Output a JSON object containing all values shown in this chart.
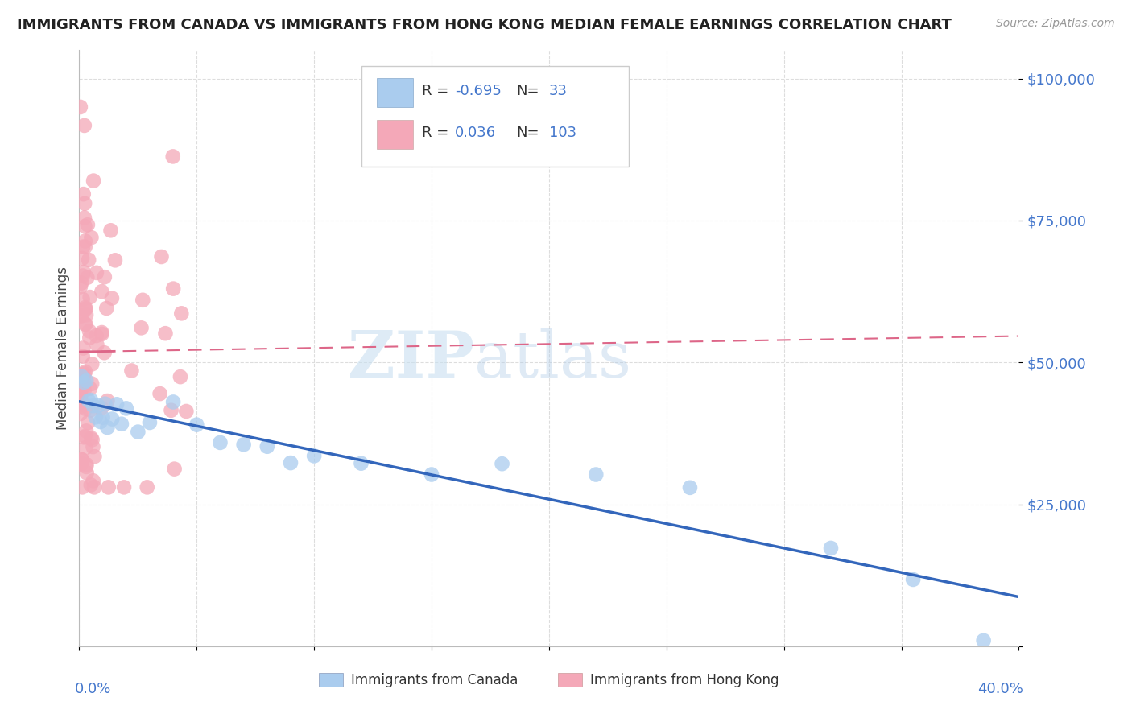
{
  "title": "IMMIGRANTS FROM CANADA VS IMMIGRANTS FROM HONG KONG MEDIAN FEMALE EARNINGS CORRELATION CHART",
  "source": "Source: ZipAtlas.com",
  "ylabel": "Median Female Earnings",
  "x_range": [
    0,
    0.4
  ],
  "y_range": [
    0,
    105000
  ],
  "canada_R": -0.695,
  "canada_N": 33,
  "hk_R": 0.036,
  "hk_N": 103,
  "canada_color": "#aaccee",
  "hk_color": "#f4a8b8",
  "canada_line_color": "#3366bb",
  "hk_line_color": "#dd6688",
  "hk_line_solid_color": "#dd6688",
  "watermark_zip": "ZIP",
  "watermark_atlas": "atlas",
  "background_color": "#ffffff",
  "grid_color": "#dddddd",
  "y_tick_values": [
    0,
    25000,
    50000,
    75000,
    100000
  ],
  "y_tick_labels": [
    "",
    "$25,000",
    "$50,000",
    "$75,000",
    "$100,000"
  ],
  "title_fontsize": 13,
  "source_fontsize": 10,
  "tick_fontsize": 13,
  "ylabel_fontsize": 12
}
